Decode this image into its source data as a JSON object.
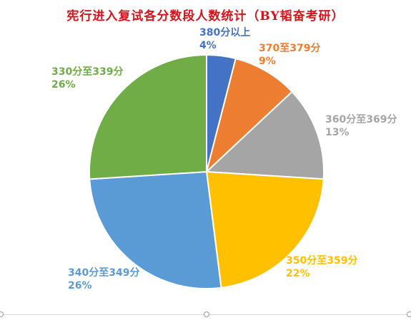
{
  "chart_data": {
    "type": "pie",
    "title": "宪行进入复试各分数段人数统计（BY韬奋考研）",
    "slices": [
      {
        "label": "380分以上",
        "value": 4,
        "percent_label": "4%",
        "color": "#4472c4"
      },
      {
        "label": "370至379分",
        "value": 9,
        "percent_label": "9%",
        "color": "#ed7d31"
      },
      {
        "label": "360分至369分",
        "value": 13,
        "percent_label": "13%",
        "color": "#a5a5a5"
      },
      {
        "label": "350分至359分",
        "value": 22,
        "percent_label": "22%",
        "color": "#ffc000"
      },
      {
        "label": "340分至349分",
        "value": 26,
        "percent_label": "26%",
        "color": "#5b9bd5"
      },
      {
        "label": "330分至339分",
        "value": 26,
        "percent_label": "26%",
        "color": "#70ad47"
      }
    ]
  }
}
